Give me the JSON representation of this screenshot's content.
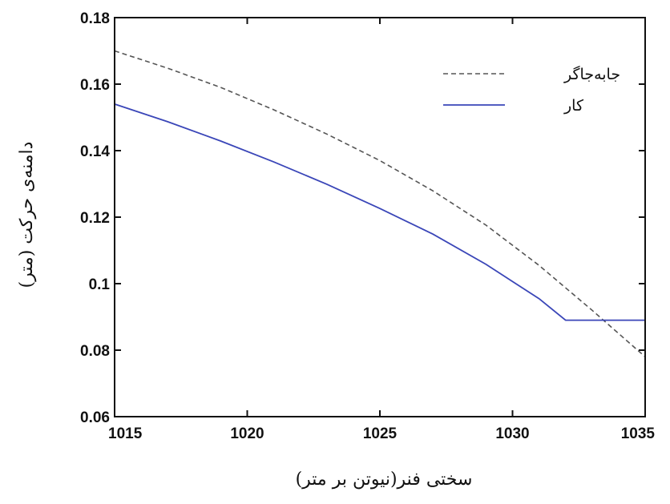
{
  "chart_data": {
    "type": "line",
    "title": "",
    "xlabel": "سختی فنر(نیوتن بر متر)",
    "ylabel": "دامنه‌ی حرکت (متر)",
    "xlim": [
      1015,
      1035
    ],
    "ylim": [
      0.06,
      0.18
    ],
    "xticks": [
      1015,
      1020,
      1025,
      1030,
      1035
    ],
    "xtick_labels": [
      "1015",
      "1020",
      "1025",
      "1030",
      "1035"
    ],
    "yticks": [
      0.06,
      0.08,
      0.1,
      0.12,
      0.14,
      0.16,
      0.18
    ],
    "ytick_labels": [
      "0.06",
      "0.08",
      "0.1",
      "0.12",
      "0.14",
      "0.16",
      "0.18"
    ],
    "grid": false,
    "legend_position": "top-right",
    "series": [
      {
        "name": "جابه‌جاگر",
        "style": "dashed",
        "color": "#555555",
        "x": [
          1015,
          1017,
          1019,
          1021,
          1023,
          1025,
          1027,
          1029,
          1031,
          1033,
          1035
        ],
        "y": [
          0.17,
          0.1648,
          0.159,
          0.1523,
          0.145,
          0.137,
          0.1279,
          0.1176,
          0.1055,
          0.092,
          0.078
        ]
      },
      {
        "name": "کار",
        "style": "solid",
        "color": "#3a46b8",
        "x": [
          1015,
          1017,
          1019,
          1021,
          1023,
          1025,
          1027,
          1029,
          1031,
          1032,
          1035
        ],
        "y": [
          0.154,
          0.1487,
          0.1429,
          0.1366,
          0.1299,
          0.1226,
          0.1149,
          0.1058,
          0.0955,
          0.089,
          0.089
        ]
      }
    ]
  }
}
